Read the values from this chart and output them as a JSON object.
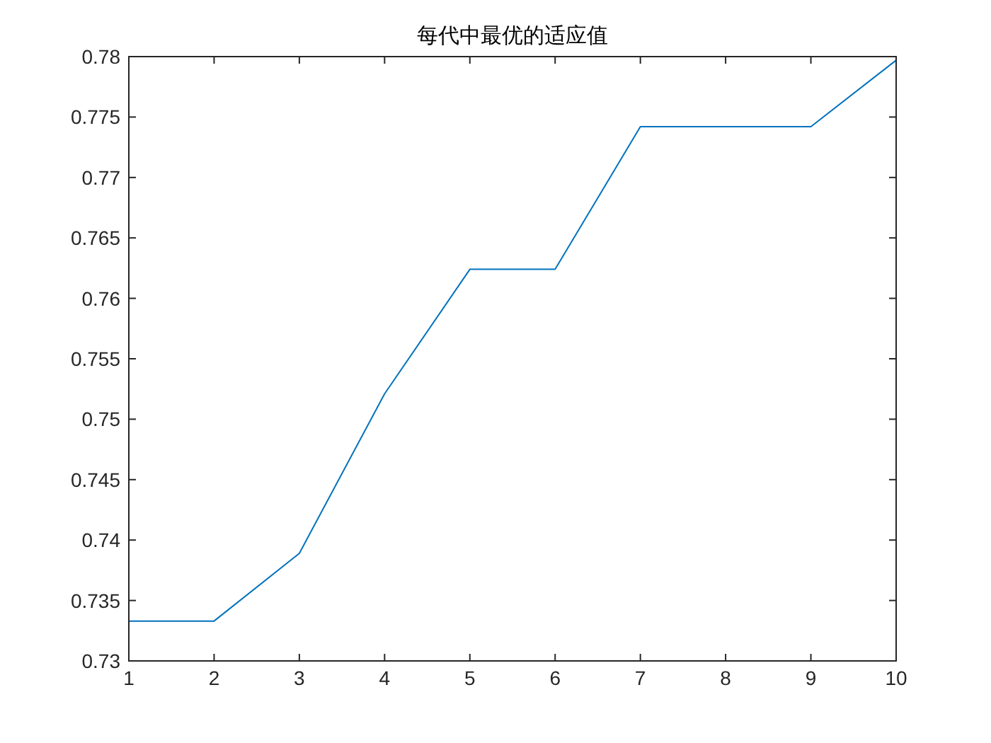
{
  "chart_data": {
    "type": "line",
    "title": "每代中最优的适应值",
    "x": [
      1,
      2,
      3,
      4,
      5,
      6,
      7,
      8,
      9,
      10
    ],
    "values": [
      0.7333,
      0.7333,
      0.7389,
      0.7521,
      0.7624,
      0.7624,
      0.7742,
      0.7742,
      0.7742,
      0.7797
    ],
    "color": "#0072bd",
    "xlim": [
      1,
      10
    ],
    "xticks": [
      1,
      2,
      3,
      4,
      5,
      6,
      7,
      8,
      9,
      10
    ],
    "ylim": [
      0.73,
      0.78
    ],
    "yticks": [
      0.73,
      0.735,
      0.74,
      0.745,
      0.75,
      0.755,
      0.76,
      0.765,
      0.77,
      0.775,
      0.78
    ]
  }
}
